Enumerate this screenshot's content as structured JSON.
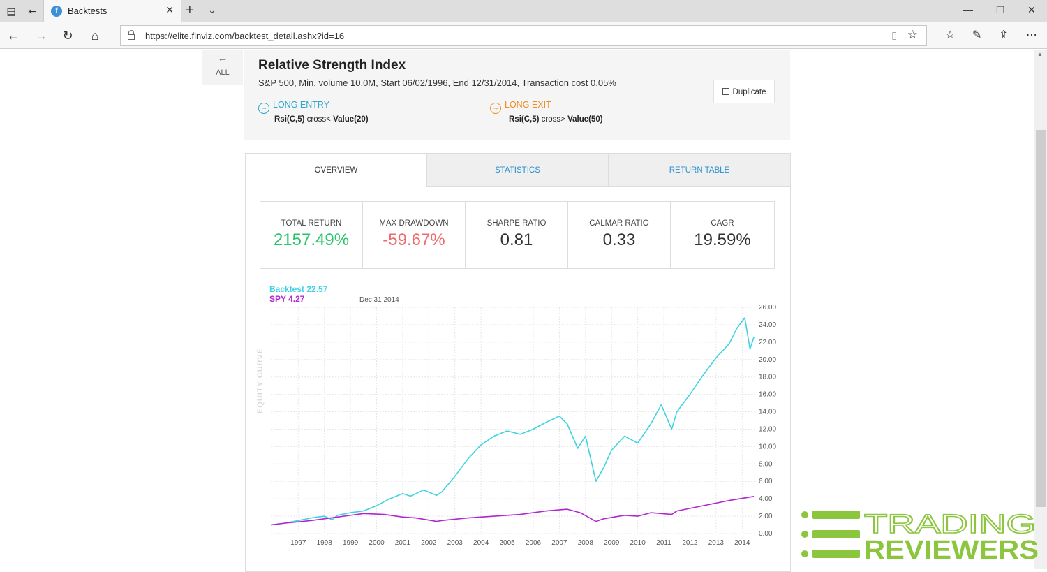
{
  "browser": {
    "tab_title": "Backtests",
    "url": "https://elite.finviz.com/backtest_detail.ashx?id=16"
  },
  "nav": {
    "back_label": "ALL"
  },
  "backtest": {
    "title": "Relative Strength Index",
    "subtitle": "S&P 500, Min. volume 10.0M, Start 06/02/1996, End 12/31/2014, Transaction cost 0.05%",
    "entry_label": "LONG ENTRY",
    "entry_expr_a": "Rsi(C,5)",
    "entry_expr_b": "cross<",
    "entry_expr_c": "Value(20)",
    "exit_label": "LONG EXIT",
    "exit_expr_a": "Rsi(C,5)",
    "exit_expr_b": "cross>",
    "exit_expr_c": "Value(50)",
    "duplicate_label": "Duplicate"
  },
  "tabs": [
    "OVERVIEW",
    "STATISTICS",
    "RETURN TABLE"
  ],
  "stats": [
    {
      "label": "TOTAL RETURN",
      "value": "2157.49%"
    },
    {
      "label": "MAX DRAWDOWN",
      "value": "-59.67%"
    },
    {
      "label": "SHARPE RATIO",
      "value": "0.81"
    },
    {
      "label": "CALMAR RATIO",
      "value": "0.33"
    },
    {
      "label": "CAGR",
      "value": "19.59%"
    }
  ],
  "colors": {
    "backtest": "#3fd3e0",
    "spy": "#b126d0",
    "positive": "#2bc46a",
    "negative": "#ef6b6b",
    "link": "#2b8fd0",
    "watermark": "#8cc63f"
  },
  "chart_data": {
    "type": "line",
    "legend": [
      {
        "name": "Backtest",
        "value": "22.57"
      },
      {
        "name": "SPY",
        "value": "4.27"
      }
    ],
    "hover_date": "Dec 31 2014",
    "ylabel": "EQUITY CURVE",
    "y_tick_labels": [
      "0.00",
      "2.00",
      "4.00",
      "6.00",
      "8.00",
      "10.00",
      "12.00",
      "14.00",
      "16.00",
      "18.00",
      "20.00",
      "22.00",
      "24.00",
      "26.00"
    ],
    "ylim": [
      0,
      26
    ],
    "xlim": [
      1996.45,
      2015.0
    ],
    "x_tick_labels": [
      "1997",
      "1998",
      "1999",
      "2000",
      "2001",
      "2002",
      "2003",
      "2004",
      "2005",
      "2006",
      "2007",
      "2008",
      "2009",
      "2010",
      "2011",
      "2012",
      "2013",
      "2014"
    ],
    "grid": true,
    "series": [
      {
        "name": "Backtest",
        "x": [
          1996.45,
          1997.0,
          1997.5,
          1998.0,
          1998.5,
          1998.8,
          1999.0,
          1999.5,
          2000.0,
          2000.5,
          2001.0,
          2001.5,
          2001.8,
          2002.3,
          2002.8,
          2003.0,
          2003.5,
          2004.0,
          2004.5,
          2005.0,
          2005.5,
          2006.0,
          2006.5,
          2007.0,
          2007.5,
          2007.8,
          2008.2,
          2008.5,
          2008.9,
          2009.2,
          2009.5,
          2010.0,
          2010.5,
          2011.0,
          2011.4,
          2011.8,
          2012.0,
          2012.5,
          2013.0,
          2013.5,
          2014.0,
          2014.3,
          2014.6,
          2014.8,
          2014.95
        ],
        "y": [
          1.0,
          1.2,
          1.5,
          1.8,
          2.0,
          1.6,
          2.1,
          2.4,
          2.6,
          3.2,
          4.0,
          4.6,
          4.3,
          5.0,
          4.4,
          4.8,
          6.6,
          8.6,
          10.2,
          11.2,
          11.8,
          11.4,
          12.0,
          12.8,
          13.5,
          12.6,
          9.8,
          11.2,
          6.0,
          7.6,
          9.6,
          11.2,
          10.4,
          12.6,
          14.8,
          12.0,
          14.0,
          16.0,
          18.2,
          20.2,
          21.8,
          23.6,
          24.8,
          21.2,
          22.57
        ]
      },
      {
        "name": "SPY",
        "x": [
          1996.45,
          1997.0,
          1998.0,
          1999.0,
          2000.0,
          2000.8,
          2001.5,
          2002.0,
          2002.8,
          2003.0,
          2004.0,
          2005.0,
          2006.0,
          2007.0,
          2007.8,
          2008.3,
          2008.9,
          2009.2,
          2010.0,
          2010.5,
          2011.0,
          2011.8,
          2012.0,
          2013.0,
          2014.0,
          2014.95
        ],
        "y": [
          1.0,
          1.2,
          1.5,
          1.9,
          2.3,
          2.2,
          1.9,
          1.8,
          1.4,
          1.5,
          1.8,
          2.0,
          2.2,
          2.6,
          2.8,
          2.4,
          1.4,
          1.7,
          2.1,
          2.0,
          2.4,
          2.2,
          2.6,
          3.2,
          3.8,
          4.27
        ]
      }
    ]
  },
  "watermark": {
    "line1": "TRADING",
    "line2": "REVIEWERS"
  }
}
